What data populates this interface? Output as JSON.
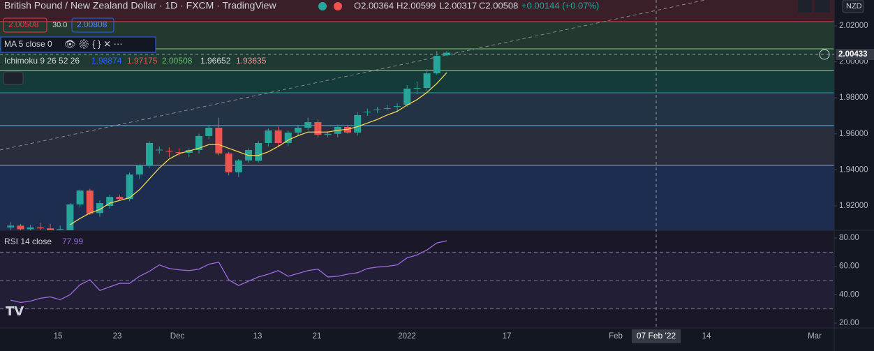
{
  "header": {
    "title": "British Pound / New Zealand Dollar · 1D · FXCM · TradingView",
    "open": "O2.00364",
    "high": "H2.00599",
    "low": "L2.00317",
    "close": "C2.00508",
    "change": "+0.00144 (+0.07%)",
    "sell": "2.00508",
    "spread": "30.0",
    "buy": "2.00808",
    "currency": "NZD"
  },
  "indicators": {
    "ma": "MA 5 close 0",
    "ichimoku": "Ichimoku 9 26 52 26",
    "ichimoku_values": [
      "1.98874",
      "1.97175",
      "2.00508",
      "1.96652",
      "1.93635"
    ],
    "rsi": "RSI 14 close",
    "rsi_value": "77.99"
  },
  "crosshair": {
    "price": "2.00433",
    "date": "07 Feb '22"
  },
  "time_axis": [
    "15",
    "23",
    "Dec",
    "13",
    "21",
    "2022",
    "17",
    "Feb",
    "14",
    "Mar"
  ],
  "chart_data": {
    "type": "candlestick",
    "up_color": "#26a69a",
    "down_color": "#ef5350",
    "ylim": [
      1.90643,
      2.03434
    ],
    "yticks": [
      {
        "value": 2.02,
        "label": "2.02000"
      },
      {
        "value": 2.0,
        "label": "2.00000"
      },
      {
        "value": 1.98,
        "label": "1.98000"
      },
      {
        "value": 1.96,
        "label": "1.96000"
      },
      {
        "value": 1.94,
        "label": "1.94000"
      },
      {
        "value": 1.92,
        "label": "1.92000"
      }
    ],
    "candles": [
      [
        1.908,
        1.911,
        1.905,
        1.909
      ],
      [
        1.909,
        1.91,
        1.905,
        1.907
      ],
      [
        1.907,
        1.9095,
        1.904,
        1.908
      ],
      [
        1.908,
        1.9105,
        1.905,
        1.9075
      ],
      [
        1.9075,
        1.91,
        1.9045,
        1.906
      ],
      [
        1.906,
        1.909,
        1.903,
        1.907
      ],
      [
        1.9064,
        1.9215,
        1.905,
        1.9208
      ],
      [
        1.9208,
        1.929,
        1.919,
        1.9285
      ],
      [
        1.9285,
        1.9295,
        1.915,
        1.9157
      ],
      [
        1.916,
        1.923,
        1.914,
        1.9215
      ],
      [
        1.92,
        1.926,
        1.9185,
        1.925
      ],
      [
        1.925,
        1.9262,
        1.923,
        1.9238
      ],
      [
        1.9238,
        1.9385,
        1.9225,
        1.9374
      ],
      [
        1.9374,
        1.943,
        1.935,
        1.9425
      ],
      [
        1.9425,
        1.956,
        1.941,
        1.9549
      ],
      [
        1.951,
        1.953,
        1.949,
        1.9512
      ],
      [
        1.9505,
        1.9525,
        1.947,
        1.9502
      ],
      [
        1.9498,
        1.952,
        1.948,
        1.9495
      ],
      [
        1.9495,
        1.952,
        1.947,
        1.951
      ],
      [
        1.951,
        1.96,
        1.949,
        1.9588
      ],
      [
        1.9588,
        1.965,
        1.957,
        1.9634
      ],
      [
        1.9634,
        1.969,
        1.948,
        1.9491
      ],
      [
        1.9491,
        1.95,
        1.937,
        1.9386
      ],
      [
        1.9386,
        1.946,
        1.936,
        1.9452
      ],
      [
        1.9452,
        1.952,
        1.944,
        1.951
      ],
      [
        1.945,
        1.956,
        1.944,
        1.9549
      ],
      [
        1.9549,
        1.963,
        1.953,
        1.9619
      ],
      [
        1.9619,
        1.964,
        1.953,
        1.9549
      ],
      [
        1.9549,
        1.962,
        1.953,
        1.9607
      ],
      [
        1.9607,
        1.965,
        1.959,
        1.9634
      ],
      [
        1.9634,
        1.969,
        1.962,
        1.9665
      ],
      [
        1.9665,
        1.968,
        1.958,
        1.9595
      ],
      [
        1.9595,
        1.9615,
        1.958,
        1.96
      ],
      [
        1.96,
        1.965,
        1.958,
        1.9638
      ],
      [
        1.9638,
        1.965,
        1.96,
        1.9607
      ],
      [
        1.9607,
        1.972,
        1.959,
        1.9704
      ],
      [
        1.972,
        1.974,
        1.97,
        1.9723
      ],
      [
        1.9733,
        1.975,
        1.9715,
        1.9735
      ],
      [
        1.974,
        1.976,
        1.973,
        1.9743
      ],
      [
        1.975,
        1.977,
        1.972,
        1.9754
      ],
      [
        1.9762,
        1.987,
        1.975,
        1.9851
      ],
      [
        1.9851,
        1.989,
        1.982,
        1.9855
      ],
      [
        1.9855,
        1.996,
        1.984,
        1.9936
      ],
      [
        1.9936,
        2.006,
        1.993,
        2.0033
      ],
      [
        2.00364,
        2.00599,
        2.00317,
        2.00508
      ]
    ],
    "ma": [
      null,
      null,
      null,
      null,
      null,
      null,
      1.9095,
      1.913,
      1.916,
      1.918,
      1.9215,
      1.923,
      1.9245,
      1.929,
      1.935,
      1.941,
      1.946,
      1.949,
      1.9505,
      1.952,
      1.954,
      1.954,
      1.952,
      1.95,
      1.948,
      1.948,
      1.95,
      1.953,
      1.9565,
      1.959,
      1.961,
      1.961,
      1.961,
      1.962,
      1.9625,
      1.964,
      1.966,
      1.968,
      1.9705,
      1.9725,
      1.976,
      1.979,
      1.983,
      1.988,
      1.994
    ],
    "ma_color": "#f7d44c",
    "rsi_ylim": [
      16.56,
      85.4
    ],
    "rsi_yticks": [
      {
        "value": 80,
        "label": "80.00"
      },
      {
        "value": 60,
        "label": "60.00"
      },
      {
        "value": 40,
        "label": "40.00"
      },
      {
        "value": 20,
        "label": "20.00"
      }
    ],
    "rsi_levels": [
      70,
      50,
      30
    ],
    "rsi": [
      36.2,
      34.5,
      35.5,
      37.5,
      38.5,
      36.5,
      40,
      47,
      50.5,
      43,
      45.5,
      48,
      48,
      53,
      56.5,
      61,
      58.5,
      57.5,
      57,
      58,
      61.5,
      63,
      50.5,
      46.5,
      49.5,
      52.5,
      54.5,
      57,
      53,
      55,
      57,
      58,
      52.5,
      53,
      54.5,
      55.5,
      58.5,
      59.5,
      60,
      61,
      66,
      68,
      71.5,
      76.5,
      77.99
    ],
    "rsi_color": "#9c6ade"
  }
}
